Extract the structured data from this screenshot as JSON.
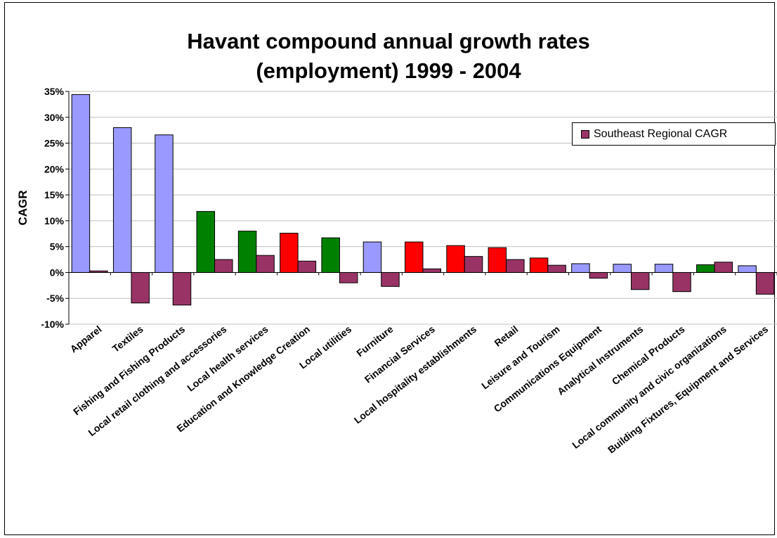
{
  "chart_data": {
    "type": "bar",
    "title": "Havant compound annual growth rates\n(employment) 1999 - 2004",
    "ylabel": "CAGR",
    "xlabel": "",
    "ylim": [
      -0.1,
      0.35
    ],
    "yticks": [
      "-10%",
      "-5%",
      "0%",
      "5%",
      "10%",
      "15%",
      "20%",
      "25%",
      "30%",
      "35%"
    ],
    "grid": true,
    "legend_position": "top-right",
    "categories": [
      "Apparel",
      "Textiles",
      "Fishing and Fishing Products",
      "Local retail clothing and accessories",
      "Local health services",
      "Education and Knowledge Creation",
      "Local utilities",
      "Furniture",
      "Financial Services",
      "Local hospitality establishments",
      "Retail",
      "Leisure and Tourism",
      "Communications Equipment",
      "Analytical Instruments",
      "Chemical Products",
      "Local community and civic organizations",
      "Building Fixtures, Equipment and Services"
    ],
    "series": [
      {
        "values": [
          0.344,
          0.28,
          0.266,
          0.118,
          0.08,
          0.076,
          0.067,
          0.059,
          0.059,
          0.052,
          0.048,
          0.028,
          0.017,
          0.016,
          0.016,
          0.015,
          0.013
        ],
        "bar_colors": [
          "#9999ff",
          "#9999ff",
          "#9999ff",
          "#008000",
          "#008000",
          "#ff0000",
          "#008000",
          "#9999ff",
          "#ff0000",
          "#ff0000",
          "#ff0000",
          "#ff0000",
          "#9999ff",
          "#9999ff",
          "#9999ff",
          "#008000",
          "#9999ff"
        ]
      },
      {
        "name": "Southeast Regional CAGR",
        "color": "#993366",
        "values": [
          0.003,
          -0.059,
          -0.063,
          0.025,
          0.033,
          0.022,
          -0.02,
          -0.027,
          0.007,
          0.031,
          0.025,
          0.014,
          -0.011,
          -0.033,
          -0.037,
          0.02,
          -0.042
        ]
      }
    ]
  }
}
